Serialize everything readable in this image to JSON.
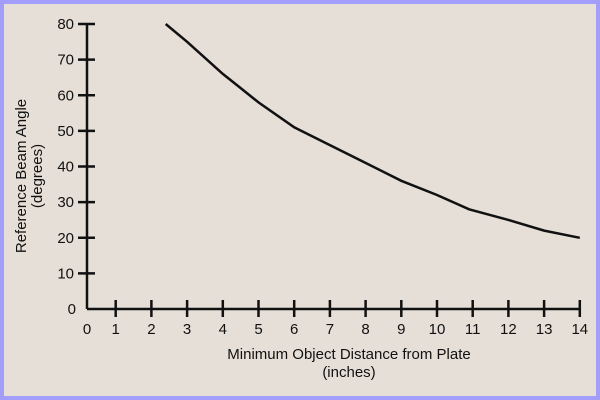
{
  "chart_data": {
    "type": "line",
    "title": "",
    "xlabel": "Minimum Object Distance from Plate",
    "xlabel_unit": "(inches)",
    "ylabel": "Reference Beam Angle",
    "ylabel_unit": "(degrees)",
    "xlim": [
      0,
      14
    ],
    "ylim": [
      0,
      80
    ],
    "xticks": [
      0,
      1,
      2,
      3,
      4,
      5,
      6,
      7,
      8,
      9,
      10,
      11,
      12,
      13,
      14
    ],
    "yticks": [
      0,
      10,
      20,
      30,
      40,
      50,
      60,
      70,
      80
    ],
    "grid": false,
    "legend": null,
    "series": [
      {
        "name": "Reference Beam Angle",
        "x": [
          2.4,
          3,
          4,
          4.5,
          5,
          6,
          7,
          7.8,
          9,
          10,
          10.9,
          12,
          13,
          14
        ],
        "y": [
          80,
          75,
          66,
          62,
          58,
          51,
          46,
          42,
          36,
          32,
          28,
          25,
          22,
          20
        ]
      }
    ]
  },
  "colors": {
    "background": "#e6dfd7",
    "border": "#a29ef9",
    "line": "#111111"
  }
}
